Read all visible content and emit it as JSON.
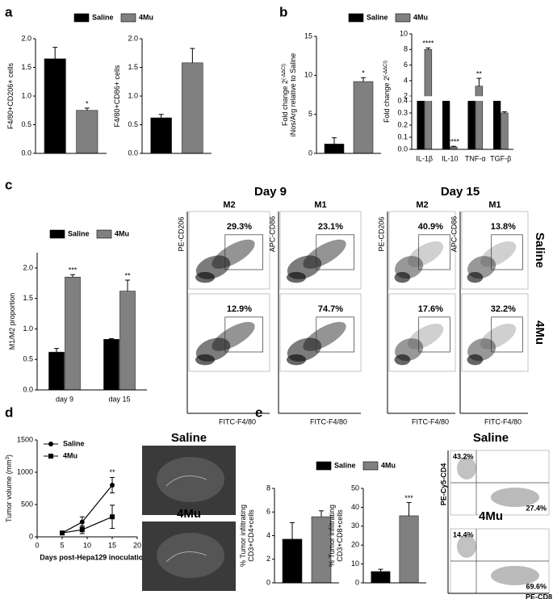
{
  "panels": [
    "a",
    "b",
    "c",
    "d",
    "e"
  ],
  "chart_data": [
    {
      "type": "bar",
      "legend": [
        {
          "name": "Saline",
          "color": "#000000"
        },
        {
          "name": "4Mu",
          "color": "#808080"
        }
      ],
      "plots": [
        {
          "ylabel": "F4/80+CD206+ cells",
          "ylim": [
            0,
            2
          ],
          "yticks": [
            {
              "value": 0,
              "label": "0.0"
            },
            {
              "value": 0.5,
              "label": "0.5"
            },
            {
              "value": 1,
              "label": "1.0"
            },
            {
              "value": 1.5,
              "label": "1.5"
            },
            {
              "value": 2,
              "label": "2.0"
            }
          ],
          "values": [
            [
              1.65
            ],
            [
              0.75
            ]
          ],
          "errors": [
            [
              0.2
            ],
            [
              0.04
            ]
          ],
          "annotations": [
            [
              null
            ],
            [
              "*"
            ]
          ]
        },
        {
          "ylabel": "F4/80+CD86+ cells",
          "ylim": [
            0,
            2
          ],
          "yticks": [
            {
              "value": 0,
              "label": "0.0"
            },
            {
              "value": 0.5,
              "label": "0.5"
            },
            {
              "value": 1,
              "label": "1.0"
            },
            {
              "value": 1.5,
              "label": "1.5"
            },
            {
              "value": 2,
              "label": "2.0"
            }
          ],
          "values": [
            [
              0.62
            ],
            [
              1.58
            ]
          ],
          "errors": [
            [
              0.06
            ],
            [
              0.25
            ]
          ],
          "annotations": [
            [
              null
            ],
            [
              null
            ]
          ]
        }
      ]
    },
    {
      "type": "bar",
      "legend": [
        {
          "name": "Saline",
          "color": "#000000"
        },
        {
          "name": "4Mu",
          "color": "#808080"
        }
      ],
      "plots": [
        {
          "ylabel": "Fold change 2",
          "ylabel_sup": "(-ΔΔCt)",
          "ylabel2": "iNos/Arg relative to Saline",
          "ylim": [
            0,
            15
          ],
          "yticks": [
            0,
            5,
            10,
            15
          ],
          "values": [
            [
              1.2
            ],
            [
              9.2
            ]
          ],
          "errors": [
            [
              0.8
            ],
            [
              0.5
            ]
          ],
          "annotations": [
            [
              null
            ],
            [
              "*"
            ]
          ]
        },
        {
          "ylabel": "Fold change 2",
          "ylabel_sup": "(-ΔΔCt)",
          "ylim": [
            0,
            10
          ],
          "ybreak": [
            0.4,
            2
          ],
          "yticks": [
            {
              "value": 0,
              "label": "0.0"
            },
            {
              "value": 0.1,
              "label": "0.1"
            },
            {
              "value": 0.2,
              "label": "0.2"
            },
            {
              "value": 0.3,
              "label": "0.3"
            },
            {
              "value": 0.4,
              "label": "0.4"
            },
            2,
            4,
            6,
            8,
            10
          ],
          "categories": [
            "IL-1β",
            "IL-10",
            "TNF-α",
            "TGF-β"
          ],
          "values": [
            [
              1,
              1,
              1,
              1
            ],
            [
              8,
              0.02,
              3.3,
              0.3
            ]
          ],
          "errors": [
            [
              0.05,
              0.05,
              0.05,
              0.05
            ],
            [
              0.2,
              0.005,
              1,
              0.01
            ]
          ],
          "annotations": [
            [
              null,
              null,
              null,
              null
            ],
            [
              "****",
              "****",
              "**",
              null
            ]
          ]
        }
      ]
    },
    {
      "type": "bar",
      "legend": [
        {
          "name": "Saline",
          "color": "#000000"
        },
        {
          "name": "4Mu",
          "color": "#808080"
        }
      ],
      "plots": [
        {
          "ylabel": "M1/M2 proportion",
          "ylim": [
            0,
            2.25
          ],
          "yticks": [
            {
              "value": 0,
              "label": "0.0"
            },
            {
              "value": 0.5,
              "label": "0.5"
            },
            {
              "value": 1,
              "label": "1.0"
            },
            {
              "value": 1.5,
              "label": "1.5"
            },
            {
              "value": 2,
              "label": "2.0"
            }
          ],
          "categories": [
            "day 9",
            "day 15"
          ],
          "values": [
            [
              0.62,
              0.83
            ],
            [
              1.85,
              1.62
            ]
          ],
          "errors": [
            [
              0.06,
              0.01
            ],
            [
              0.04,
              0.18
            ]
          ],
          "annotations": [
            [
              null,
              null
            ],
            [
              "***",
              "**"
            ]
          ]
        }
      ]
    },
    {
      "type": "line",
      "xlabel": "Days post-Hepa129 inoculation",
      "ylabel": "Tumor volume (mm",
      "ylabel_sup": "3",
      "ylabel_tail": ")",
      "x": [
        5,
        9,
        15
      ],
      "xlim": [
        0,
        20
      ],
      "xticks": [
        0,
        5,
        10,
        15,
        20
      ],
      "ylim": [
        0,
        1500
      ],
      "yticks": [
        0,
        500,
        1000,
        1500
      ],
      "series": [
        {
          "name": "Saline",
          "color": "#000000",
          "marker": "circle",
          "values": [
            60,
            230,
            800
          ],
          "errors": [
            20,
            80,
            120
          ]
        },
        {
          "name": "4Mu",
          "color": "#000000",
          "marker": "square",
          "values": [
            60,
            110,
            310
          ],
          "errors": [
            20,
            60,
            180
          ]
        }
      ],
      "annotations": [
        null,
        null,
        "**"
      ]
    },
    {
      "type": "bar",
      "legend": [
        {
          "name": "Saline",
          "color": "#000000"
        },
        {
          "name": "4Mu",
          "color": "#808080"
        }
      ],
      "plots": [
        {
          "ylabel": "% Tumor infiltrating",
          "ylabel2": "CD3+CD4+cells",
          "ylim": [
            0,
            8
          ],
          "yticks": [
            0,
            2,
            4,
            6,
            8
          ],
          "values": [
            [
              3.7
            ],
            [
              5.6
            ]
          ],
          "errors": [
            [
              1.4
            ],
            [
              0.5
            ]
          ],
          "annotations": [
            [
              null
            ],
            [
              null
            ]
          ]
        },
        {
          "ylabel": "% Tumor infiltrating",
          "ylabel2": "CD3+CD8+cells",
          "ylim": [
            0,
            50
          ],
          "yticks": [
            0,
            10,
            20,
            30,
            40,
            50
          ],
          "values": [
            [
              6
            ],
            [
              35.5
            ]
          ],
          "errors": [
            [
              1.2
            ],
            [
              7
            ]
          ],
          "annotations": [
            [
              null
            ],
            [
              "***"
            ]
          ]
        }
      ]
    }
  ],
  "flow": {
    "days": [
      {
        "title": "Day 9",
        "columns": [
          "M2",
          "M1"
        ],
        "y_labels": [
          "PE-CD206",
          "APC-CD86"
        ],
        "x_labels": [
          "FITC-F4/80",
          "FITC-F4/80"
        ],
        "gates": [
          [
            "29.3%",
            "23.1%"
          ],
          [
            "12.9%",
            "74.7%"
          ]
        ]
      },
      {
        "title": "Day 15",
        "columns": [
          "M2",
          "M1"
        ],
        "y_labels": [
          "PE-CD206",
          "APC-CD86"
        ],
        "x_labels": [
          "FITC-F4/80",
          "FITC-F4/80"
        ],
        "gates": [
          [
            "40.9%",
            "13.8%"
          ],
          [
            "17.6%",
            "32.2%"
          ]
        ]
      }
    ],
    "row_labels": [
      "Saline",
      "4Mu"
    ]
  },
  "photos": {
    "labels": [
      "Saline",
      "4Mu"
    ]
  },
  "flow_e": {
    "row_labels": [
      "Saline",
      "4Mu"
    ],
    "y_label": "PE-Cy5-CD4",
    "x_label": "PE-CD8",
    "quadrants": [
      [
        "43.2%",
        "27.4%"
      ],
      [
        "14.4%",
        "69.6%"
      ]
    ]
  }
}
